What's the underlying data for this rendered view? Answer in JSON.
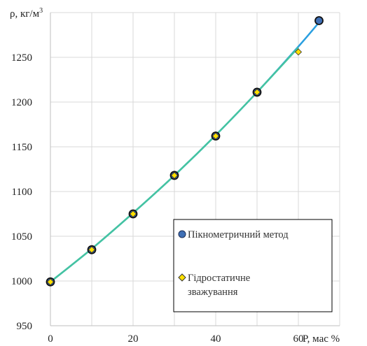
{
  "chart_data": {
    "type": "scatter",
    "ylabel_prefix": "ρ, кг/м",
    "ylabel_sup": "3",
    "xlabel": "P, мас %",
    "xlim": [
      0,
      70
    ],
    "ylim": [
      950,
      1300
    ],
    "x_ticks": [
      0,
      20,
      40,
      60
    ],
    "y_ticks": [
      950,
      1000,
      1050,
      1100,
      1150,
      1200,
      1250
    ],
    "grid": true,
    "legend_position": "bottom-right",
    "series": [
      {
        "name": "Пікнометричний метод",
        "marker": "circle",
        "color": "#3f6fb5",
        "x": [
          0,
          10,
          20,
          30,
          40,
          50,
          65
        ],
        "y": [
          999,
          1035,
          1075,
          1118,
          1162,
          1211,
          1291
        ]
      },
      {
        "name": "Гідростатичне зважування",
        "marker": "diamond",
        "color": "#ffe000",
        "x": [
          0,
          10,
          20,
          30,
          40,
          50,
          60
        ],
        "y": [
          999,
          1035,
          1075,
          1118,
          1162,
          1211,
          1256
        ]
      }
    ],
    "fit_lines": [
      {
        "color": "#2a9fe0",
        "x": [
          0,
          10,
          20,
          30,
          40,
          50,
          60,
          65
        ],
        "y": [
          999,
          1036,
          1076,
          1118,
          1163,
          1211,
          1262,
          1289
        ]
      },
      {
        "color": "#45c4a0",
        "x": [
          0,
          10,
          20,
          30,
          40,
          50,
          60
        ],
        "y": [
          999,
          1036,
          1076,
          1118,
          1163,
          1211,
          1261
        ]
      }
    ],
    "legend_entries": [
      {
        "line1": "Пікнометричний метод",
        "line2": ""
      },
      {
        "line1": "Гідростатичне",
        "line2": "зважування"
      }
    ]
  }
}
